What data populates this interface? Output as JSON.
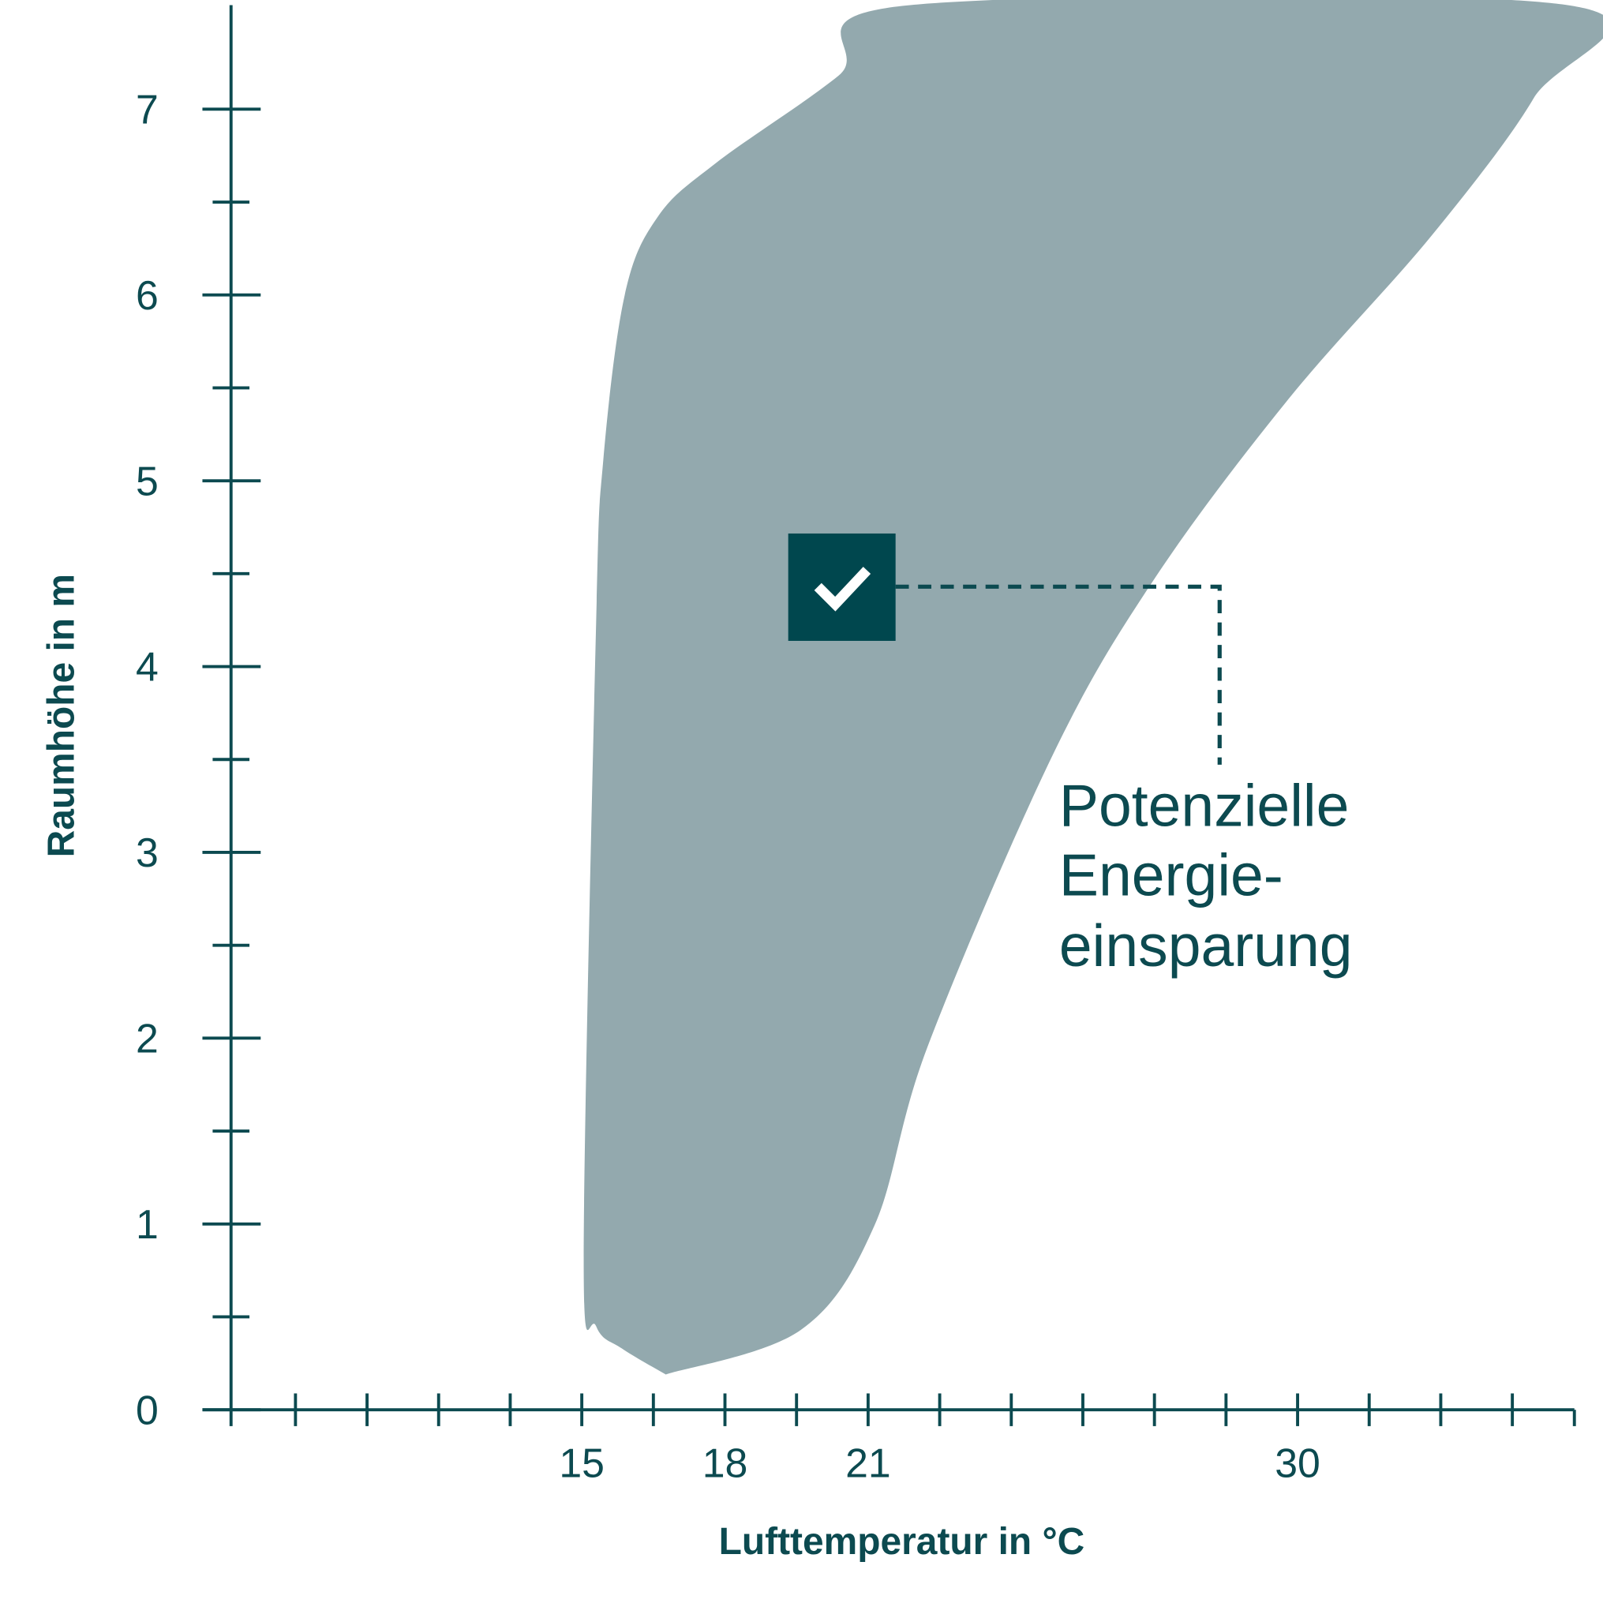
{
  "chart_data": {
    "type": "area",
    "title": "",
    "xlabel": "Lufttemperatur in °C",
    "ylabel": "Raumhöhe in m",
    "xlim": [
      7.65,
      35.8
    ],
    "ylim": [
      0,
      7.56
    ],
    "x_ticks_labeled": [
      15,
      18,
      21,
      30
    ],
    "x_tick_step": 1.5,
    "y_ticks_labeled": [
      0,
      1,
      2,
      3,
      4,
      5,
      6,
      7
    ],
    "y_minor_step": 0.5,
    "grid": false,
    "band": {
      "color": "#93a9ae",
      "left_edge": [
        [
          16.76,
          0.19
        ],
        [
          15.84,
          0.33
        ],
        [
          15.3,
          0.45
        ],
        [
          15.04,
          0.82
        ],
        [
          15.3,
          4.23
        ],
        [
          15.45,
          5.11
        ],
        [
          15.9,
          6.0
        ],
        [
          16.59,
          6.42
        ],
        [
          17.81,
          6.71
        ],
        [
          20.38,
          7.18
        ],
        [
          21.88,
          7.56
        ]
      ],
      "right_edge": [
        [
          16.76,
          0.19
        ],
        [
          19.59,
          0.43
        ],
        [
          21.13,
          0.99
        ],
        [
          22.24,
          1.95
        ],
        [
          24.88,
          3.53
        ],
        [
          27.02,
          4.48
        ],
        [
          29.81,
          5.44
        ],
        [
          32.81,
          6.32
        ],
        [
          34.95,
          7.06
        ],
        [
          35.66,
          7.56
        ]
      ]
    },
    "marker": {
      "x": 20.44,
      "y": 4.43,
      "icon": "check-icon",
      "color": "#00474e"
    },
    "annotation": {
      "lines": [
        "Potenzielle",
        "Energie-",
        "einsparung"
      ],
      "leader": "dashed"
    },
    "colors": {
      "ink": "#0c4a50",
      "band": "#93a9ae"
    }
  }
}
